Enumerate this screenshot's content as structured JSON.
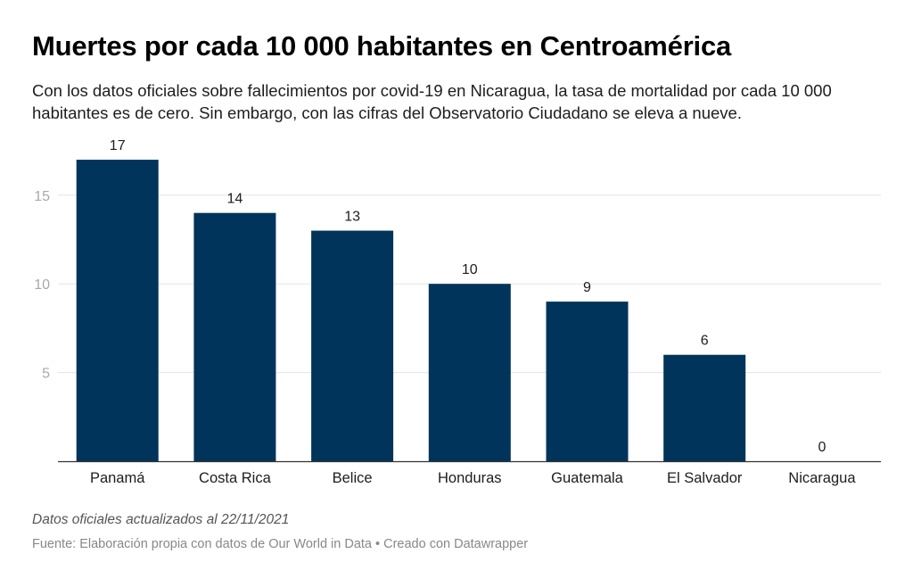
{
  "header": {
    "title": "Muertes por cada 10 000 habitantes en Centroamérica",
    "subtitle": "Con los datos oficiales sobre fallecimientos por covid-19 en Nicaragua, la tasa de mortalidad por cada 10 000 habitantes es de cero. Sin embargo, con las cifras del Observatorio Ciudadano se eleva a nueve."
  },
  "chart_data": {
    "type": "bar",
    "categories": [
      "Panamá",
      "Costa Rica",
      "Belice",
      "Honduras",
      "Guatemala",
      "El Salvador",
      "Nicaragua"
    ],
    "values": [
      17,
      14,
      13,
      10,
      9,
      6,
      0
    ],
    "value_labels": [
      "17",
      "14",
      "13",
      "10",
      "9",
      "6",
      "0"
    ],
    "yticks": [
      5,
      10,
      15
    ],
    "ytick_labels": [
      "5",
      "10",
      "15"
    ],
    "ylim": [
      0,
      17
    ],
    "grid": true,
    "bar_color": "#01345b"
  },
  "footer": {
    "note": "Datos oficiales actualizados al 22/11/2021",
    "source": "Fuente: Elaboración propia con datos de Our World in Data • Creado con Datawrapper"
  }
}
